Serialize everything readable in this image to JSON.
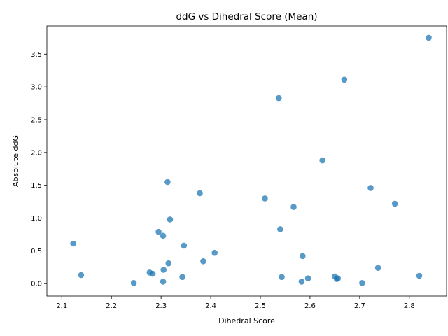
{
  "chart_data": {
    "type": "scatter",
    "title": "ddG vs Dihedral Score (Mean)",
    "xlabel": "Dihedral Score",
    "ylabel": "Absolute ddG",
    "xlim": [
      2.07,
      2.875
    ],
    "ylim": [
      -0.19,
      3.93
    ],
    "xticks": [
      2.1,
      2.2,
      2.3,
      2.4,
      2.5,
      2.6,
      2.7,
      2.8
    ],
    "yticks": [
      0.0,
      0.5,
      1.0,
      1.5,
      2.0,
      2.5,
      3.0,
      3.5
    ],
    "grid": false,
    "marker_color": "#1f77b4",
    "points": [
      {
        "x": 2.123,
        "y": 0.61
      },
      {
        "x": 2.139,
        "y": 0.13
      },
      {
        "x": 2.245,
        "y": 0.01
      },
      {
        "x": 2.277,
        "y": 0.17
      },
      {
        "x": 2.283,
        "y": 0.15
      },
      {
        "x": 2.295,
        "y": 0.79
      },
      {
        "x": 2.304,
        "y": 0.73
      },
      {
        "x": 2.304,
        "y": 0.03
      },
      {
        "x": 2.305,
        "y": 0.21
      },
      {
        "x": 2.313,
        "y": 1.55
      },
      {
        "x": 2.315,
        "y": 0.31
      },
      {
        "x": 2.318,
        "y": 0.98
      },
      {
        "x": 2.343,
        "y": 0.1
      },
      {
        "x": 2.346,
        "y": 0.58
      },
      {
        "x": 2.378,
        "y": 1.38
      },
      {
        "x": 2.385,
        "y": 0.34
      },
      {
        "x": 2.408,
        "y": 0.47
      },
      {
        "x": 2.509,
        "y": 1.3
      },
      {
        "x": 2.537,
        "y": 2.83
      },
      {
        "x": 2.54,
        "y": 0.83
      },
      {
        "x": 2.543,
        "y": 0.1
      },
      {
        "x": 2.567,
        "y": 1.17
      },
      {
        "x": 2.583,
        "y": 0.03
      },
      {
        "x": 2.585,
        "y": 0.42
      },
      {
        "x": 2.596,
        "y": 0.08
      },
      {
        "x": 2.625,
        "y": 1.88
      },
      {
        "x": 2.65,
        "y": 0.11
      },
      {
        "x": 2.654,
        "y": 0.07
      },
      {
        "x": 2.656,
        "y": 0.08
      },
      {
        "x": 2.669,
        "y": 3.11
      },
      {
        "x": 2.705,
        "y": 0.01
      },
      {
        "x": 2.722,
        "y": 1.46
      },
      {
        "x": 2.737,
        "y": 0.24
      },
      {
        "x": 2.771,
        "y": 1.22
      },
      {
        "x": 2.82,
        "y": 0.12
      },
      {
        "x": 2.839,
        "y": 3.75
      }
    ]
  }
}
